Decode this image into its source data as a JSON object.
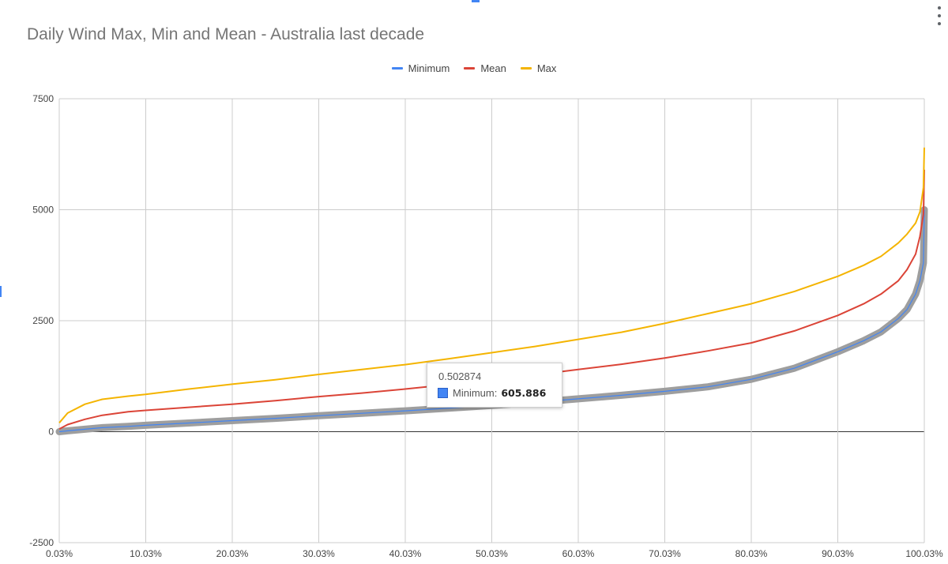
{
  "chart_data": {
    "type": "line",
    "title": "Daily Wind Max, Min and Mean - Australia last decade",
    "xlabel": "",
    "ylabel": "",
    "x_range": [
      0.0003,
      1.0
    ],
    "ylim": [
      -2500,
      7500
    ],
    "y_ticks": [
      -2500,
      0,
      2500,
      5000,
      7500
    ],
    "y_tick_labels": [
      "-2500",
      "0",
      "2500",
      "5000",
      "7500"
    ],
    "x_tick_labels": [
      "0.03%",
      "10.03%",
      "20.03%",
      "30.03%",
      "40.03%",
      "50.03%",
      "60.03%",
      "70.03%",
      "80.03%",
      "90.03%",
      "100.03%"
    ],
    "legend_position": "top",
    "grid": true,
    "x": [
      0.0003,
      0.01,
      0.03,
      0.05,
      0.08,
      0.1,
      0.15,
      0.2,
      0.25,
      0.3,
      0.35,
      0.4,
      0.45,
      0.5,
      0.55,
      0.6,
      0.65,
      0.7,
      0.75,
      0.8,
      0.85,
      0.9,
      0.93,
      0.95,
      0.97,
      0.98,
      0.99,
      0.995,
      0.999,
      1.0
    ],
    "series": [
      {
        "name": "Minimum",
        "color": "#4285f4",
        "values": [
          0,
          20,
          55,
          90,
          120,
          145,
          195,
          250,
          300,
          360,
          415,
          470,
          530,
          590,
          660,
          740,
          820,
          910,
          1010,
          1180,
          1430,
          1800,
          2050,
          2250,
          2550,
          2750,
          3100,
          3400,
          3800,
          5000
        ]
      },
      {
        "name": "Mean",
        "color": "#db4437",
        "values": [
          60,
          160,
          280,
          370,
          450,
          480,
          550,
          620,
          700,
          790,
          870,
          960,
          1060,
          1170,
          1280,
          1400,
          1520,
          1660,
          1820,
          2000,
          2270,
          2620,
          2880,
          3100,
          3400,
          3650,
          4000,
          4400,
          4900,
          5900
        ]
      },
      {
        "name": "Max",
        "color": "#f4b400",
        "values": [
          200,
          420,
          620,
          730,
          800,
          840,
          960,
          1070,
          1170,
          1290,
          1400,
          1510,
          1640,
          1780,
          1920,
          2080,
          2240,
          2440,
          2660,
          2880,
          3160,
          3500,
          3750,
          3950,
          4250,
          4450,
          4700,
          4950,
          5500,
          6400
        ]
      }
    ]
  },
  "tooltip": {
    "x_value": "0.502874",
    "series_label": "Minimum:",
    "value": "605.886"
  }
}
